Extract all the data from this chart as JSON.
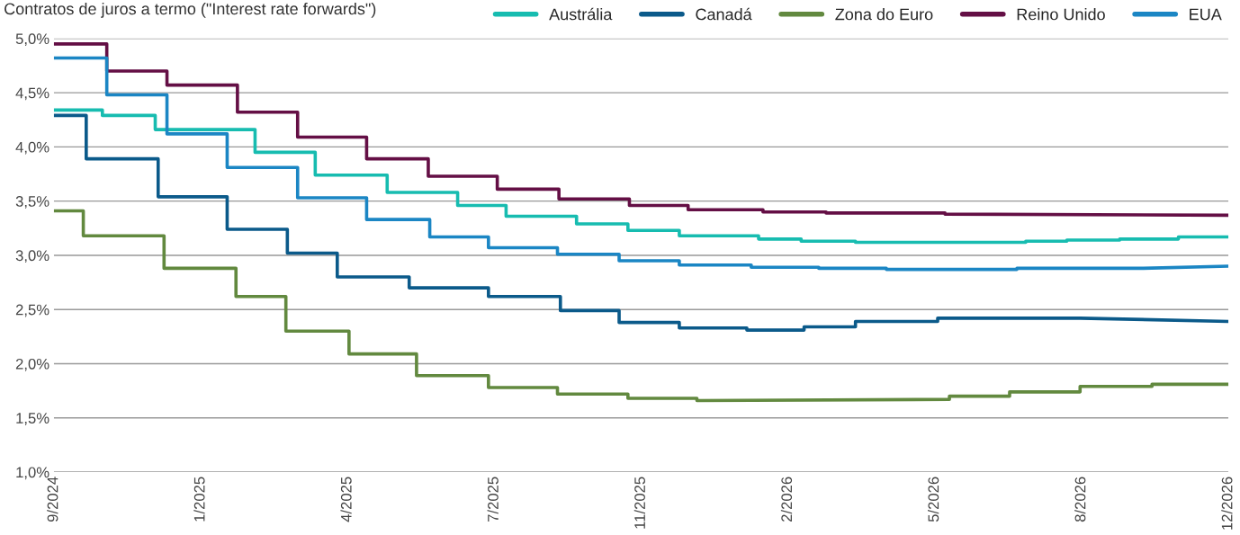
{
  "chart_data": {
    "type": "line",
    "title": "Contratos de juros a termo (\"Interest rate forwards\")",
    "xlim": [
      "2024-09-30",
      "2026-12-09"
    ],
    "xticks": [
      {
        "value": "2024-09-30",
        "label": "9/2024"
      },
      {
        "value": "2025-01-08",
        "label": "1/2025"
      },
      {
        "value": "2025-04-18",
        "label": "4/2025"
      },
      {
        "value": "2025-07-27",
        "label": "7/2025"
      },
      {
        "value": "2025-11-04",
        "label": "11/2025"
      },
      {
        "value": "2026-02-12",
        "label": "2/2026"
      },
      {
        "value": "2026-05-23",
        "label": "5/2026"
      },
      {
        "value": "2026-08-31",
        "label": "8/2026"
      },
      {
        "value": "2026-12-09",
        "label": "12/2026"
      }
    ],
    "ylim": [
      1.0,
      5.0
    ],
    "yticks": [
      {
        "value": 1.0,
        "label": "1,0%"
      },
      {
        "value": 1.5,
        "label": "1,5%"
      },
      {
        "value": 2.0,
        "label": "2,0%"
      },
      {
        "value": 2.5,
        "label": "2,5%"
      },
      {
        "value": 3.0,
        "label": "3,0%"
      },
      {
        "value": 3.5,
        "label": "3,5%"
      },
      {
        "value": 4.0,
        "label": "4,0%"
      },
      {
        "value": 4.5,
        "label": "4,5%"
      },
      {
        "value": 5.0,
        "label": "5,0%"
      }
    ],
    "grid": "y",
    "legend": "top right",
    "marker": "none",
    "line_style": "solid",
    "series": [
      {
        "name": "Austrália",
        "color": "#17bcb0",
        "x": [
          "2024-09-30",
          "2024-11-02",
          "2024-11-02",
          "2024-12-08",
          "2024-12-08",
          "2025-02-14",
          "2025-02-14",
          "2025-03-27",
          "2025-03-27",
          "2025-05-15",
          "2025-05-15",
          "2025-07-02",
          "2025-07-02",
          "2025-08-04",
          "2025-08-04",
          "2025-09-21",
          "2025-09-21",
          "2025-10-26",
          "2025-10-26",
          "2025-11-30",
          "2025-11-30",
          "2026-01-23",
          "2026-01-23",
          "2026-02-21",
          "2026-02-21",
          "2026-03-30",
          "2026-03-30",
          "2026-07-24",
          "2026-07-24",
          "2026-08-21",
          "2026-08-21",
          "2026-09-26",
          "2026-09-26",
          "2026-11-05",
          "2026-11-05",
          "2026-12-09"
        ],
        "values": [
          4.34,
          4.34,
          4.29,
          4.29,
          4.16,
          4.16,
          3.95,
          3.95,
          3.74,
          3.74,
          3.58,
          3.58,
          3.46,
          3.46,
          3.36,
          3.36,
          3.29,
          3.29,
          3.23,
          3.23,
          3.18,
          3.18,
          3.15,
          3.15,
          3.13,
          3.13,
          3.12,
          3.12,
          3.13,
          3.13,
          3.14,
          3.14,
          3.15,
          3.15,
          3.17,
          3.17
        ]
      },
      {
        "name": "Canadá",
        "color": "#0b5a8a",
        "x": [
          "2024-09-30",
          "2024-10-22",
          "2024-10-22",
          "2024-12-10",
          "2024-12-10",
          "2025-01-26",
          "2025-01-26",
          "2025-03-08",
          "2025-03-08",
          "2025-04-11",
          "2025-04-11",
          "2025-05-30",
          "2025-05-30",
          "2025-07-23",
          "2025-07-23",
          "2025-09-10",
          "2025-09-10",
          "2025-10-20",
          "2025-10-20",
          "2025-11-30",
          "2025-11-30",
          "2026-01-15",
          "2026-01-15",
          "2026-02-23",
          "2026-02-23",
          "2026-03-30",
          "2026-03-30",
          "2026-05-25",
          "2026-05-25",
          "2026-08-30",
          "2026-12-09"
        ],
        "values": [
          4.29,
          4.29,
          3.89,
          3.89,
          3.54,
          3.54,
          3.24,
          3.24,
          3.02,
          3.02,
          2.8,
          2.8,
          2.7,
          2.7,
          2.62,
          2.62,
          2.49,
          2.49,
          2.38,
          2.38,
          2.33,
          2.33,
          2.31,
          2.31,
          2.34,
          2.34,
          2.39,
          2.39,
          2.42,
          2.42,
          2.39
        ]
      },
      {
        "name": "Zona do Euro",
        "color": "#62893f",
        "x": [
          "2024-09-30",
          "2024-10-20",
          "2024-10-20",
          "2024-12-14",
          "2024-12-14",
          "2025-02-01",
          "2025-02-01",
          "2025-03-07",
          "2025-03-07",
          "2025-04-19",
          "2025-04-19",
          "2025-06-04",
          "2025-06-04",
          "2025-07-23",
          "2025-07-23",
          "2025-09-08",
          "2025-09-08",
          "2025-10-26",
          "2025-10-26",
          "2025-12-12",
          "2025-12-12",
          "2026-06-02",
          "2026-06-02",
          "2026-07-13",
          "2026-07-13",
          "2026-08-30",
          "2026-08-30",
          "2026-10-18",
          "2026-10-18",
          "2026-12-09"
        ],
        "values": [
          3.41,
          3.41,
          3.18,
          3.18,
          2.88,
          2.88,
          2.62,
          2.62,
          2.3,
          2.3,
          2.09,
          2.09,
          1.89,
          1.89,
          1.78,
          1.78,
          1.72,
          1.72,
          1.68,
          1.68,
          1.66,
          1.67,
          1.7,
          1.7,
          1.74,
          1.74,
          1.79,
          1.79,
          1.81,
          1.81
        ]
      },
      {
        "name": "Reino Unido",
        "color": "#640f45",
        "x": [
          "2024-09-30",
          "2024-11-05",
          "2024-11-05",
          "2024-12-16",
          "2024-12-16",
          "2025-02-02",
          "2025-02-02",
          "2025-03-15",
          "2025-03-15",
          "2025-05-01",
          "2025-05-01",
          "2025-06-12",
          "2025-06-12",
          "2025-07-29",
          "2025-07-29",
          "2025-09-09",
          "2025-09-09",
          "2025-10-27",
          "2025-10-27",
          "2025-12-06",
          "2025-12-06",
          "2026-01-26",
          "2026-01-26",
          "2026-03-10",
          "2026-03-10",
          "2026-05-30",
          "2026-05-30",
          "2026-12-09"
        ],
        "values": [
          4.95,
          4.95,
          4.7,
          4.7,
          4.57,
          4.57,
          4.32,
          4.32,
          4.09,
          4.09,
          3.89,
          3.89,
          3.73,
          3.73,
          3.61,
          3.61,
          3.52,
          3.52,
          3.46,
          3.46,
          3.42,
          3.42,
          3.4,
          3.4,
          3.39,
          3.39,
          3.38,
          3.37
        ]
      },
      {
        "name": "EUA",
        "color": "#1b86c4",
        "x": [
          "2024-09-30",
          "2024-11-05",
          "2024-11-05",
          "2024-12-16",
          "2024-12-16",
          "2025-01-26",
          "2025-01-26",
          "2025-03-15",
          "2025-03-15",
          "2025-05-01",
          "2025-05-01",
          "2025-06-13",
          "2025-06-13",
          "2025-07-23",
          "2025-07-23",
          "2025-09-08",
          "2025-09-08",
          "2025-10-20",
          "2025-10-20",
          "2025-11-30",
          "2025-11-30",
          "2026-01-18",
          "2026-01-18",
          "2026-03-05",
          "2026-03-05",
          "2026-04-20",
          "2026-04-20",
          "2026-07-18",
          "2026-07-18",
          "2026-10-12",
          "2026-12-09"
        ],
        "values": [
          4.82,
          4.82,
          4.48,
          4.48,
          4.12,
          4.12,
          3.81,
          3.81,
          3.53,
          3.53,
          3.33,
          3.33,
          3.17,
          3.17,
          3.07,
          3.07,
          3.01,
          3.01,
          2.95,
          2.95,
          2.91,
          2.91,
          2.89,
          2.89,
          2.88,
          2.88,
          2.87,
          2.87,
          2.88,
          2.88,
          2.9
        ]
      }
    ]
  }
}
